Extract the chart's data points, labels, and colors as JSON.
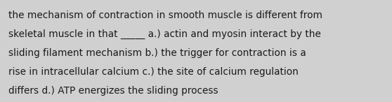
{
  "lines": [
    "the mechanism of contraction in smooth muscle is different from",
    "skeletal muscle in that _____ a.) actin and myosin interact by the",
    "sliding filament mechanism b.) the trigger for contraction is a",
    "rise in intracellular calcium c.) the site of calcium regulation",
    "differs d.) ATP energizes the sliding process"
  ],
  "background_color": "#d0d0d0",
  "text_color": "#1a1a1a",
  "font_size": 9.8,
  "fig_width": 5.58,
  "fig_height": 1.46
}
